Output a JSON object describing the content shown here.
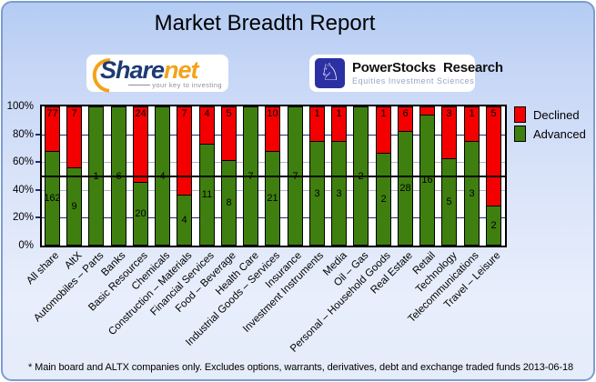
{
  "title": "Market Breadth Report",
  "logos": {
    "sharenet": {
      "brand_primary": "Share",
      "brand_accent": "net",
      "tagline": "your key to investing"
    },
    "powerstocks": {
      "name": "PowerStocks  Research",
      "tagline": "Equities Investment Sciences",
      "icon": "knight-chess-icon",
      "icon_glyph": "♘",
      "square_color": "#2b31a3"
    }
  },
  "legend": [
    {
      "label": "Declined",
      "color": "#f40000"
    },
    {
      "label": "Advanced",
      "color": "#3f7f0f"
    }
  ],
  "chart_data": {
    "type": "bar",
    "variant": "stacked-100-percent",
    "title": "Market Breadth Report",
    "categories": [
      "All share",
      "AltX",
      "Automobiles – Parts",
      "Banks",
      "Basic Resources",
      "Chemicals",
      "Construction – Materials",
      "Financial Services",
      "Food – Beverage",
      "Health Care",
      "Industrial Goods – Services",
      "Insurance",
      "Investment Instruments",
      "Media",
      "Oil – Gas",
      "Personal – Household Goods",
      "Real Estate",
      "Retail",
      "Technology",
      "Telecommunications",
      "Travel – Leisure"
    ],
    "series": [
      {
        "name": "Declined",
        "color": "#f40000",
        "values": [
          77,
          7,
          0,
          0,
          24,
          0,
          7,
          4,
          5,
          0,
          10,
          0,
          1,
          1,
          0,
          1,
          6,
          1,
          3,
          1,
          5
        ]
      },
      {
        "name": "Advanced",
        "color": "#3f7f0f",
        "values": [
          162,
          9,
          1,
          6,
          20,
          4,
          4,
          11,
          8,
          7,
          21,
          7,
          3,
          3,
          2,
          2,
          28,
          16,
          5,
          3,
          2
        ]
      }
    ],
    "y_ticks": [
      "0%",
      "20%",
      "40%",
      "60%",
      "80%",
      "100%"
    ],
    "y_tick_values": [
      0,
      20,
      40,
      60,
      80,
      100
    ],
    "ylim": [
      0,
      100
    ],
    "reference_line_pct": 50,
    "legend_position": "top-right",
    "gridlines": {
      "navy_at": [
        20,
        80
      ],
      "gray_at": [
        40,
        60
      ]
    },
    "note": "red segment labels hidden when segment too small (Retail declined = 1, unlabeled)"
  },
  "footer": {
    "note": "* Main board and ALTX companies only. Excludes options, warrants, derivatives, debt and exchange traded funds",
    "date": "2013-06-18"
  }
}
